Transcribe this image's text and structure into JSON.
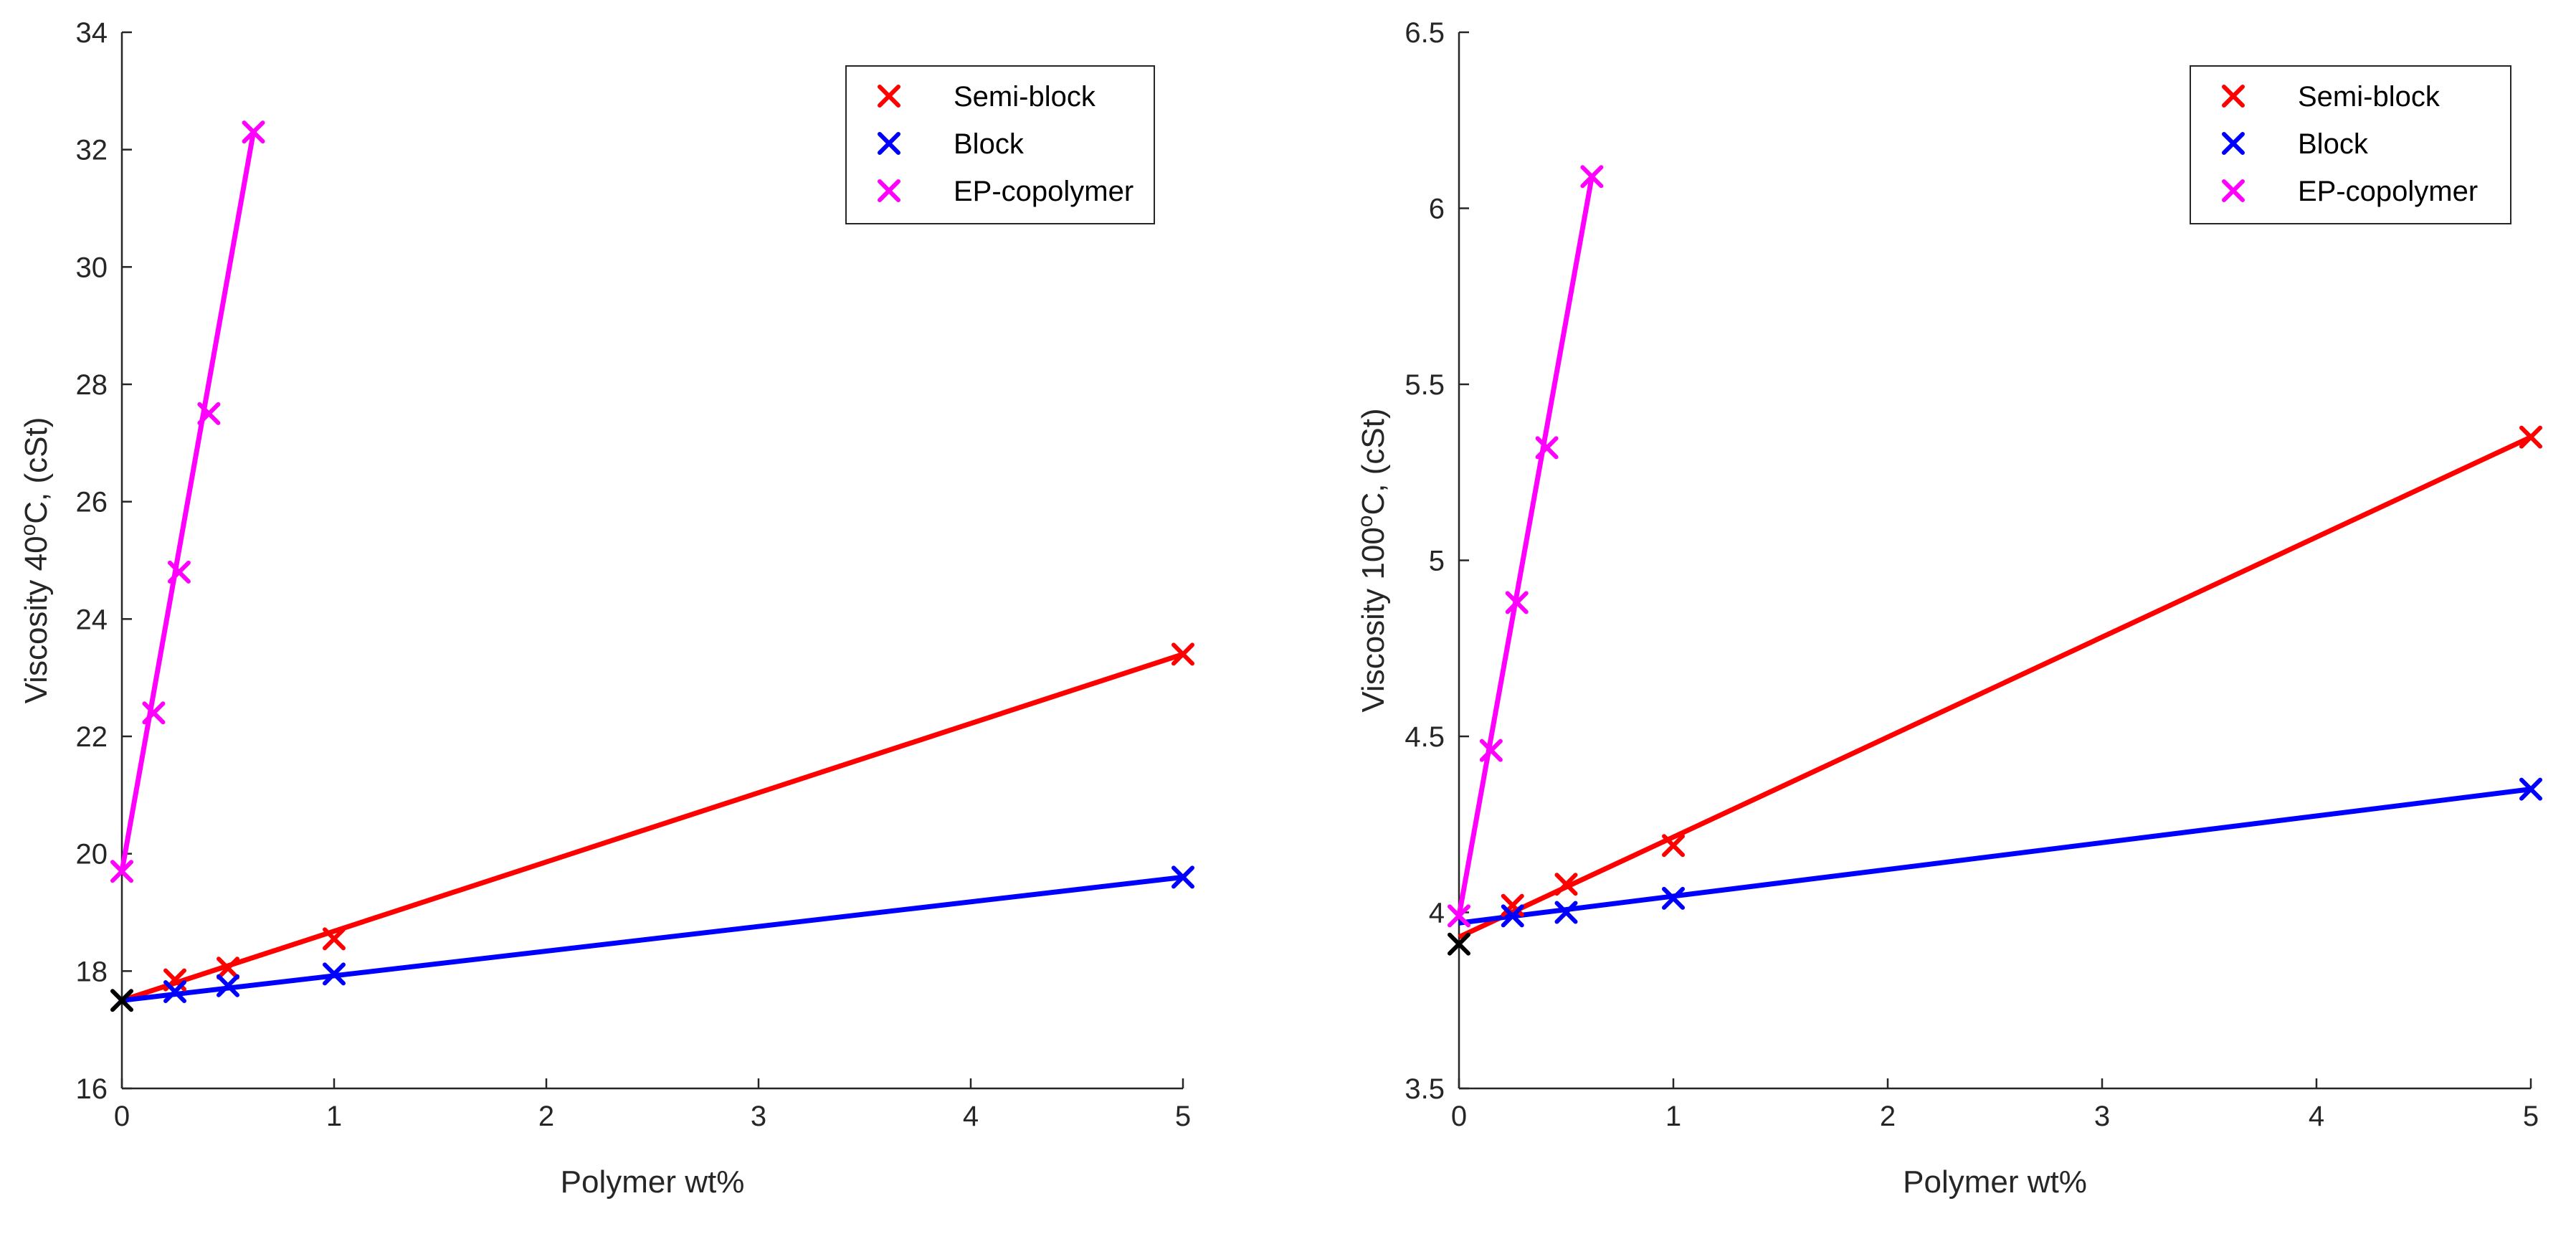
{
  "chart_data": [
    {
      "type": "line",
      "title": "",
      "xlabel": "Polymer wt%",
      "ylabel": "Viscosity 40°C, (cSt)",
      "ylabel_parts": {
        "before": "Viscosity 40",
        "sup": "o",
        "after": "C, (cSt)"
      },
      "xlim": [
        0,
        5
      ],
      "ylim": [
        16,
        34
      ],
      "xticks": [
        "0",
        "1",
        "2",
        "3",
        "4",
        "5"
      ],
      "yticks": [
        "16",
        "18",
        "20",
        "22",
        "24",
        "26",
        "28",
        "30",
        "32",
        "34"
      ],
      "grid": false,
      "legend_position": "top-right",
      "base_oil": {
        "x": 0,
        "y": 17.5,
        "color": "#000000"
      },
      "series": [
        {
          "name": "Semi-block",
          "color": "#ff0000",
          "points": [
            [
              0.25,
              17.85
            ],
            [
              0.5,
              18.05
            ],
            [
              1,
              18.55
            ],
            [
              5,
              23.4
            ]
          ],
          "fit": [
            [
              0,
              17.5
            ],
            [
              5,
              23.4
            ]
          ]
        },
        {
          "name": "Block",
          "color": "#0000ff",
          "points": [
            [
              0.25,
              17.65
            ],
            [
              0.5,
              17.75
            ],
            [
              1,
              17.95
            ],
            [
              5,
              19.6
            ]
          ],
          "fit": [
            [
              0,
              17.5
            ],
            [
              5,
              19.6
            ]
          ]
        },
        {
          "name": "EP-copolymer",
          "color": "#ff00ff",
          "points": [
            [
              0,
              19.7
            ],
            [
              0.15,
              22.4
            ],
            [
              0.27,
              24.8
            ],
            [
              0.41,
              27.5
            ],
            [
              0.62,
              32.3
            ]
          ],
          "fit": [
            [
              0,
              19.7
            ],
            [
              0.62,
              32.3
            ]
          ]
        }
      ]
    },
    {
      "type": "line",
      "title": "",
      "xlabel": "Polymer wt%",
      "ylabel": "Viscosity 100°C, (cSt)",
      "ylabel_parts": {
        "before": "Viscosity 100",
        "sup": "o",
        "after": "C, (cSt)"
      },
      "xlim": [
        0,
        5
      ],
      "ylim": [
        3.5,
        6.5
      ],
      "xticks": [
        "0",
        "1",
        "2",
        "3",
        "4",
        "5"
      ],
      "yticks": [
        "3.5",
        "4",
        "4.5",
        "5",
        "5.5",
        "6",
        "6.5"
      ],
      "grid": false,
      "legend_position": "top-right",
      "base_oil": {
        "x": 0,
        "y": 3.91,
        "color": "#000000"
      },
      "series": [
        {
          "name": "Semi-block",
          "color": "#ff0000",
          "points": [
            [
              0.25,
              4.02
            ],
            [
              0.5,
              4.08
            ],
            [
              1,
              4.19
            ],
            [
              5,
              5.35
            ]
          ],
          "fit": [
            [
              0,
              3.93
            ],
            [
              5,
              5.35
            ]
          ]
        },
        {
          "name": "Block",
          "color": "#0000ff",
          "points": [
            [
              0.25,
              3.99
            ],
            [
              0.5,
              4.0
            ],
            [
              1,
              4.04
            ],
            [
              5,
              4.35
            ]
          ],
          "fit": [
            [
              0,
              3.97
            ],
            [
              5,
              4.35
            ]
          ]
        },
        {
          "name": "EP-copolymer",
          "color": "#ff00ff",
          "points": [
            [
              0,
              3.99
            ],
            [
              0.15,
              4.46
            ],
            [
              0.27,
              4.88
            ],
            [
              0.41,
              5.32
            ],
            [
              0.62,
              6.09
            ]
          ],
          "fit": [
            [
              0,
              3.99
            ],
            [
              0.62,
              6.09
            ]
          ]
        }
      ]
    }
  ]
}
